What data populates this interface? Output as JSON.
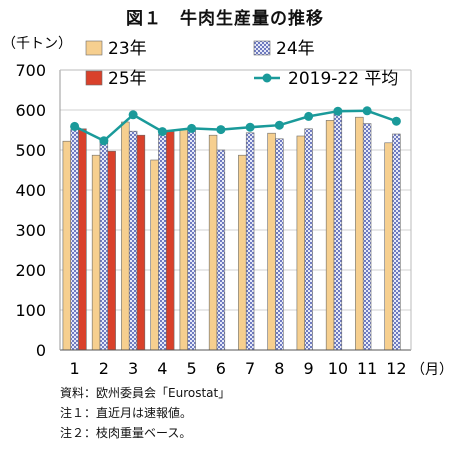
{
  "chart_data": {
    "type": "bar",
    "title": "図１　牛肉生産量の推移",
    "y_unit_label": "（千トン）",
    "x_unit_label": "（月）",
    "categories": [
      "1",
      "2",
      "3",
      "4",
      "5",
      "6",
      "7",
      "8",
      "9",
      "10",
      "11",
      "12"
    ],
    "ylim": [
      0,
      700
    ],
    "yticks": [
      0,
      100,
      200,
      300,
      400,
      500,
      600,
      700
    ],
    "grid": true,
    "legend_position": "top",
    "series": [
      {
        "name": "23年",
        "kind": "bar",
        "color": "#f6cf8f",
        "pattern": "solid",
        "values": [
          522,
          487,
          570,
          475,
          552,
          537,
          487,
          542,
          535,
          574,
          582,
          518
        ]
      },
      {
        "name": "24年",
        "kind": "bar",
        "color": "#7a85c8",
        "pattern": "checker",
        "values": [
          551,
          530,
          547,
          539,
          552,
          500,
          543,
          528,
          553,
          598,
          566,
          540
        ]
      },
      {
        "name": "25年",
        "kind": "bar",
        "color": "#d9412b",
        "pattern": "solid",
        "values": [
          553,
          497,
          537,
          546,
          null,
          null,
          null,
          null,
          null,
          null,
          null,
          null
        ]
      },
      {
        "name": "2019-22 平均",
        "kind": "line",
        "color": "#1a9a9a",
        "values": [
          559,
          523,
          588,
          546,
          554,
          551,
          557,
          562,
          584,
          597,
          598,
          572
        ]
      }
    ]
  },
  "footnotes": [
    "資料：欧州委員会「Eurostat」",
    "注１：直近月は速報値。",
    "注２：枝肉重量ベース。"
  ]
}
